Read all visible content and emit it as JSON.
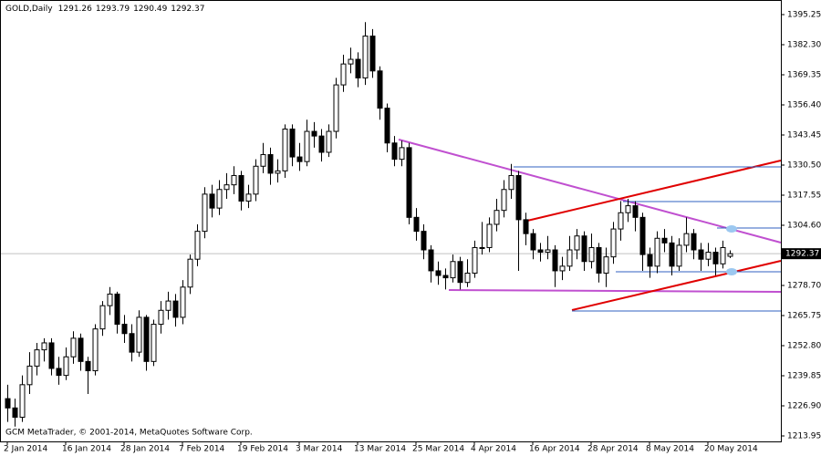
{
  "chart_data": {
    "type": "candlestick",
    "title": "GOLD,Daily",
    "footer": "GCM MetaTrader, © 2001-2014, MetaQuotes Software Corp.",
    "x": [
      "2 Jan 2014",
      null,
      null,
      null,
      null,
      null,
      null,
      null,
      "16 Jan 2014",
      null,
      null,
      null,
      null,
      null,
      null,
      null,
      "28 Jan 2014",
      null,
      null,
      null,
      null,
      null,
      null,
      null,
      "7 Feb 2014",
      null,
      null,
      null,
      null,
      null,
      null,
      null,
      "19 Feb 2014",
      null,
      null,
      null,
      null,
      null,
      null,
      null,
      "3 Mar 2014",
      null,
      null,
      null,
      null,
      null,
      null,
      null,
      "13 Mar 2014",
      null,
      null,
      null,
      null,
      null,
      null,
      null,
      "25 Mar 2014",
      null,
      null,
      null,
      null,
      null,
      null,
      null,
      "4 Apr 2014",
      null,
      null,
      null,
      null,
      null,
      null,
      null,
      "16 Apr 2014",
      null,
      null,
      null,
      null,
      null,
      null,
      null,
      "28 Apr 2014",
      null,
      null,
      null,
      null,
      null,
      null,
      null,
      "8 May 2014",
      null,
      null,
      null,
      null,
      null,
      null,
      null,
      "20 May 2014",
      null,
      null,
      null
    ],
    "open": [
      1230,
      1226,
      1222,
      1236,
      1244,
      1251,
      1254,
      1243,
      1240,
      1248,
      1256,
      1246,
      1242,
      1260,
      1270,
      1275,
      1262,
      1258,
      1250,
      1265,
      1246,
      1262,
      1268,
      1272,
      1265,
      1278,
      1290,
      1302,
      1318,
      1312,
      1320,
      1322,
      1326,
      1315,
      1318,
      1330,
      1335,
      1327,
      1328,
      1346,
      1334,
      1332,
      1345,
      1343,
      1336,
      1345,
      1365,
      1374,
      1376,
      1368,
      1386,
      1371,
      1355,
      1340,
      1333,
      1338,
      1308,
      1302,
      1294,
      1285,
      1283,
      1282,
      1289,
      1280,
      1284,
      1295,
      1295,
      1305,
      1311,
      1320,
      1326,
      1307,
      1301,
      1294,
      1293,
      1294,
      1285,
      1287,
      1294,
      1300,
      1289,
      1295,
      1284,
      1291,
      1303,
      1310,
      1313,
      1308,
      1292,
      1287,
      1299,
      1297,
      1287,
      1296,
      1301,
      1294,
      1290,
      1293,
      1288,
      1291.26
    ],
    "high": [
      1236,
      1230,
      1240,
      1250,
      1254,
      1256,
      1256,
      1248,
      1252,
      1259,
      1258,
      1248,
      1262,
      1272,
      1278,
      1276,
      1266,
      1262,
      1268,
      1266,
      1264,
      1272,
      1276,
      1275,
      1281,
      1292,
      1305,
      1321,
      1322,
      1324,
      1327,
      1330,
      1328,
      1322,
      1333,
      1340,
      1338,
      1333,
      1348,
      1348,
      1340,
      1350,
      1349,
      1346,
      1348,
      1368,
      1378,
      1381,
      1379,
      1392,
      1389,
      1373,
      1357,
      1343,
      1341,
      1340,
      1312,
      1305,
      1296,
      1289,
      1286,
      1292,
      1291,
      1290,
      1298,
      1306,
      1308,
      1316,
      1324,
      1331,
      1328,
      1310,
      1303,
      1297,
      1300,
      1296,
      1291,
      1300,
      1303,
      1302,
      1301,
      1297,
      1295,
      1306,
      1315,
      1316,
      1315,
      1310,
      1295,
      1302,
      1303,
      1300,
      1299,
      1308,
      1303,
      1297,
      1297,
      1295,
      1298,
      1293.79
    ],
    "low": [
      1220,
      1218,
      1220,
      1232,
      1240,
      1246,
      1240,
      1236,
      1238,
      1245,
      1242,
      1232,
      1240,
      1257,
      1266,
      1258,
      1254,
      1246,
      1248,
      1242,
      1244,
      1258,
      1264,
      1261,
      1262,
      1275,
      1287,
      1299,
      1308,
      1309,
      1316,
      1318,
      1311,
      1312,
      1315,
      1327,
      1322,
      1323,
      1325,
      1330,
      1328,
      1330,
      1338,
      1332,
      1334,
      1342,
      1362,
      1370,
      1364,
      1365,
      1368,
      1350,
      1336,
      1330,
      1330,
      1305,
      1298,
      1290,
      1280,
      1279,
      1277,
      1280,
      1277,
      1278,
      1282,
      1292,
      1293,
      1302,
      1308,
      1316,
      1285,
      1296,
      1290,
      1289,
      1290,
      1278,
      1281,
      1285,
      1290,
      1285,
      1286,
      1280,
      1278,
      1288,
      1298,
      1306,
      1302,
      1285,
      1282,
      1284,
      1293,
      1283,
      1285,
      1293,
      1290,
      1285,
      1287,
      1283,
      1286,
      1290.49
    ],
    "close": [
      1226,
      1222,
      1236,
      1244,
      1251,
      1254,
      1243,
      1240,
      1248,
      1256,
      1246,
      1242,
      1260,
      1270,
      1275,
      1262,
      1258,
      1250,
      1265,
      1246,
      1262,
      1268,
      1272,
      1265,
      1278,
      1290,
      1302,
      1318,
      1312,
      1320,
      1322,
      1326,
      1315,
      1318,
      1330,
      1335,
      1327,
      1328,
      1346,
      1334,
      1332,
      1345,
      1343,
      1336,
      1345,
      1365,
      1374,
      1376,
      1368,
      1386,
      1371,
      1355,
      1340,
      1333,
      1338,
      1308,
      1302,
      1294,
      1285,
      1283,
      1282,
      1289,
      1280,
      1284,
      1295,
      1295,
      1305,
      1311,
      1320,
      1326,
      1307,
      1301,
      1294,
      1293,
      1294,
      1285,
      1287,
      1294,
      1300,
      1289,
      1295,
      1284,
      1291,
      1303,
      1310,
      1313,
      1308,
      1292,
      1287,
      1299,
      1297,
      1287,
      1296,
      1301,
      1294,
      1290,
      1293,
      1288,
      1295,
      1292.37
    ],
    "up_color": "#ffffff",
    "down_color": "#000000",
    "edge_color": "#000000",
    "ylim": [
      1211.6,
      1400.74
    ],
    "yticks": [
      {
        "value": 1395.25,
        "label": "1395.25"
      },
      {
        "value": 1382.3,
        "label": "1382.30"
      },
      {
        "value": 1369.35,
        "label": "1369.35"
      },
      {
        "value": 1356.4,
        "label": "1356.40"
      },
      {
        "value": 1343.45,
        "label": "1343.45"
      },
      {
        "value": 1330.5,
        "label": "1330.50"
      },
      {
        "value": 1317.55,
        "label": "1317.55"
      },
      {
        "value": 1304.6,
        "label": "1304.60"
      },
      {
        "value": 1278.7,
        "label": "1278.70"
      },
      {
        "value": 1265.75,
        "label": "1265.75"
      },
      {
        "value": 1252.8,
        "label": "1252.80"
      },
      {
        "value": 1239.85,
        "label": "1239.85"
      },
      {
        "value": 1226.9,
        "label": "1226.90"
      },
      {
        "value": 1213.95,
        "label": "1213.95"
      }
    ]
  }
}
